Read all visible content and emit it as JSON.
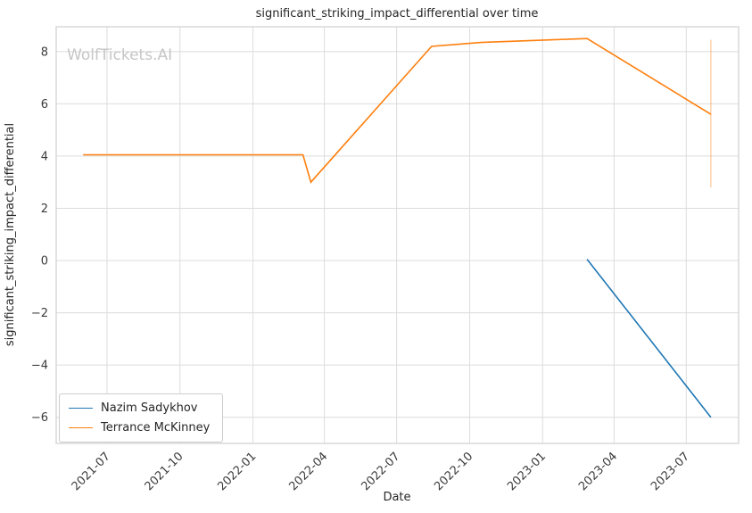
{
  "chart_data": {
    "type": "line",
    "title": "significant_striking_impact_differential over time",
    "xlabel": "Date",
    "ylabel": "significant_striking_impact_differential",
    "watermark": "WolfTickets.AI",
    "grid": true,
    "legend_position": "lower left",
    "x_range": [
      "2021-04-28",
      "2023-09-05"
    ],
    "ylim": [
      -7.0,
      8.95
    ],
    "x_ticks": [
      {
        "date": "2021-07-01",
        "label": "2021-07"
      },
      {
        "date": "2021-10-01",
        "label": "2021-10"
      },
      {
        "date": "2022-01-01",
        "label": "2022-01"
      },
      {
        "date": "2022-04-01",
        "label": "2022-04"
      },
      {
        "date": "2022-07-01",
        "label": "2022-07"
      },
      {
        "date": "2022-10-01",
        "label": "2022-10"
      },
      {
        "date": "2023-01-01",
        "label": "2023-01"
      },
      {
        "date": "2023-04-01",
        "label": "2023-04"
      },
      {
        "date": "2023-07-01",
        "label": "2023-07"
      }
    ],
    "y_ticks": [
      {
        "value": -6,
        "label": "−6"
      },
      {
        "value": -4,
        "label": "−4"
      },
      {
        "value": -2,
        "label": "−2"
      },
      {
        "value": 0,
        "label": "0"
      },
      {
        "value": 2,
        "label": "2"
      },
      {
        "value": 4,
        "label": "4"
      },
      {
        "value": 6,
        "label": "6"
      },
      {
        "value": 8,
        "label": "8"
      }
    ],
    "series": [
      {
        "name": "Nazim Sadykhov",
        "color": "#1f77b4",
        "points": [
          {
            "date": "2023-02-26",
            "value": 0.05
          },
          {
            "date": "2023-08-01",
            "value": -6.0
          }
        ]
      },
      {
        "name": "Terrance McKinney",
        "color": "#ff7f0e",
        "points": [
          {
            "date": "2021-06-01",
            "value": 4.05
          },
          {
            "date": "2022-03-05",
            "value": 4.05
          },
          {
            "date": "2022-03-15",
            "value": 3.0
          },
          {
            "date": "2022-08-14",
            "value": 8.2
          },
          {
            "date": "2022-10-15",
            "value": 8.35
          },
          {
            "date": "2023-01-14",
            "value": 8.45
          },
          {
            "date": "2023-02-26",
            "value": 8.5
          },
          {
            "date": "2023-08-01",
            "value": 5.6
          }
        ],
        "error_bar": {
          "date": "2023-08-01",
          "low": 2.8,
          "high": 8.45
        }
      }
    ]
  }
}
